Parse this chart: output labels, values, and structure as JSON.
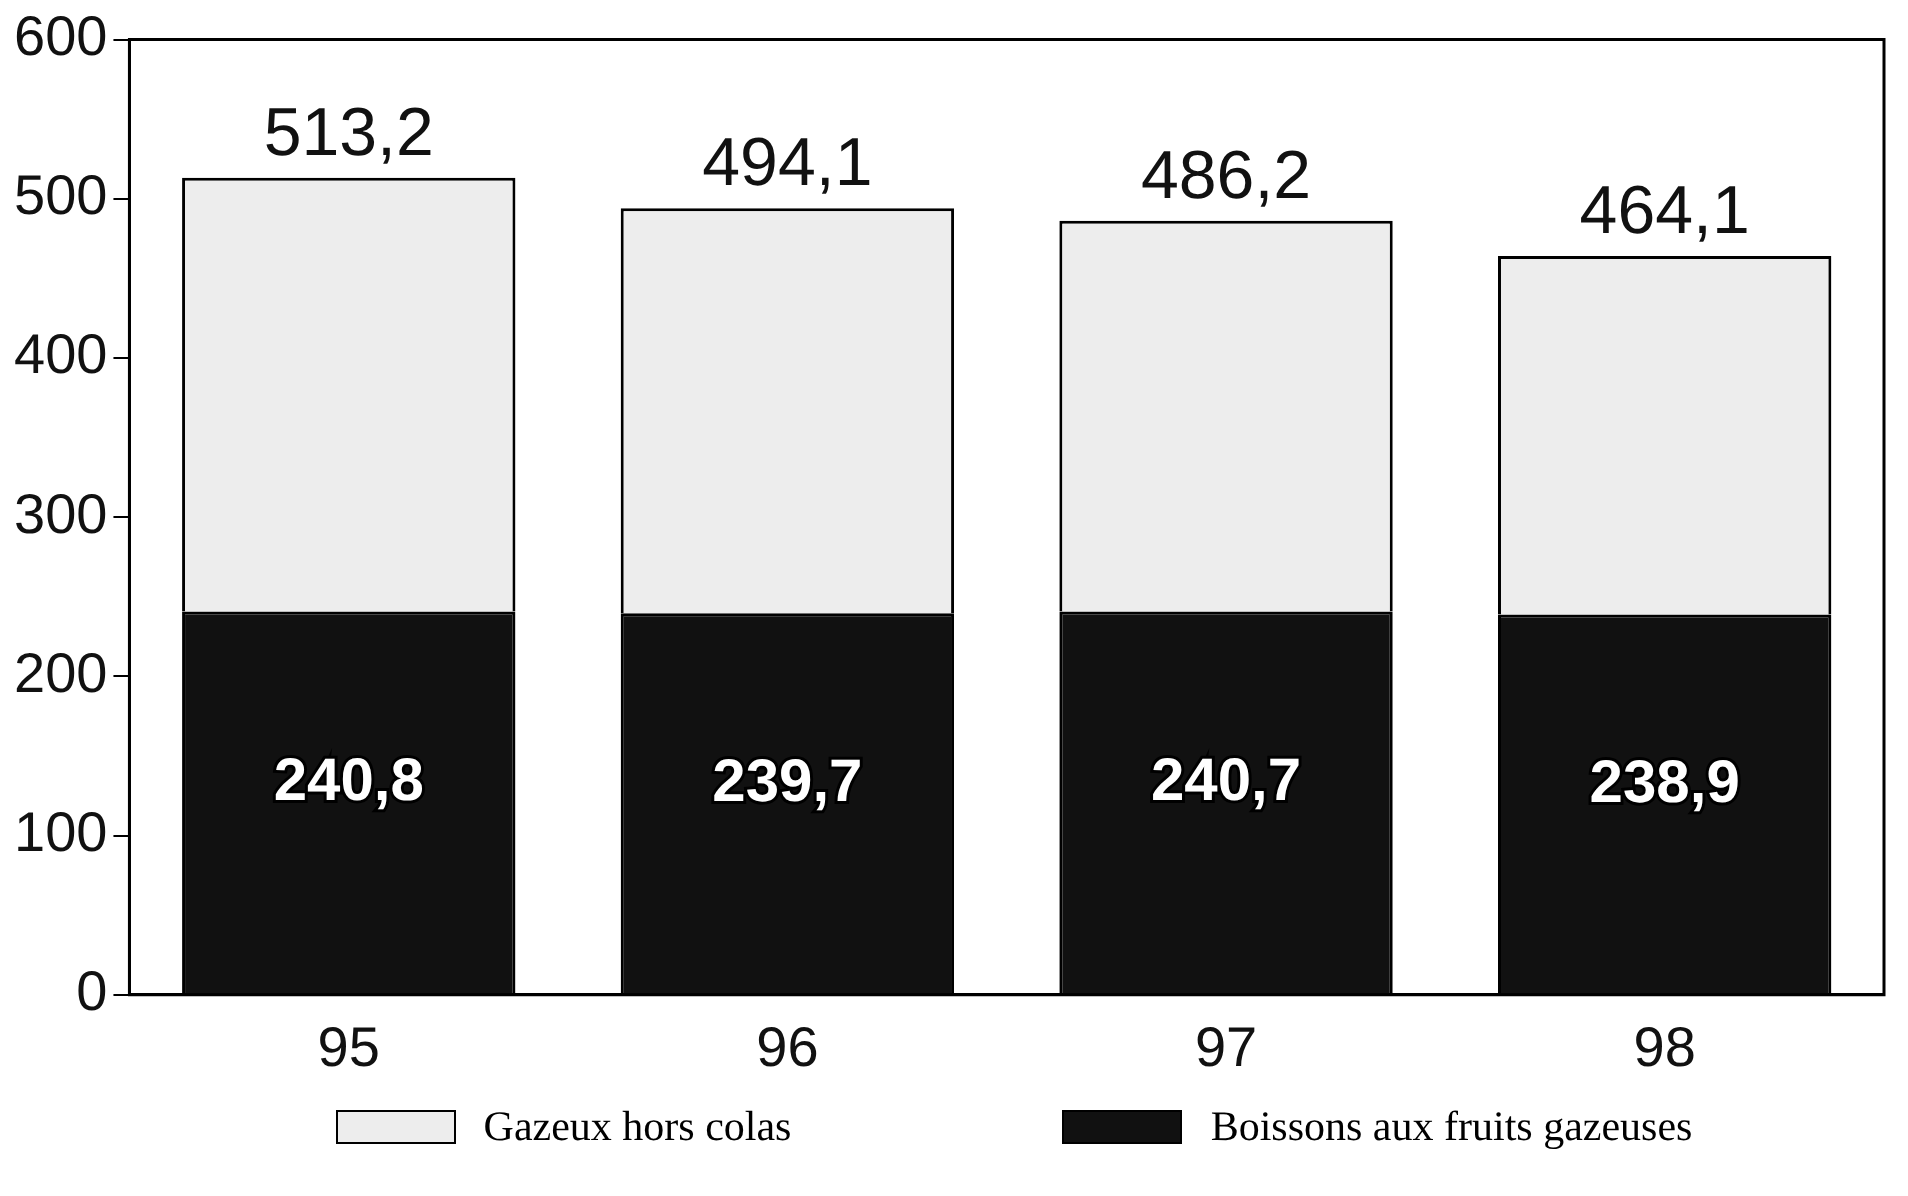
{
  "chart_data": {
    "type": "bar",
    "stacked": true,
    "categories": [
      "95",
      "96",
      "97",
      "98"
    ],
    "series": [
      {
        "name": "Boissons aux fruits gazeuses",
        "color": "#111111",
        "values": [
          240.8,
          239.7,
          240.7,
          238.9
        ],
        "value_labels": [
          "240,8",
          "239,7",
          "240,7",
          "238,9"
        ]
      },
      {
        "name": "Gazeux hors colas",
        "color": "#ededed",
        "values": [
          272.4,
          254.4,
          245.5,
          225.2
        ]
      }
    ],
    "totals": [
      "513,2",
      "494,1",
      "486,2",
      "464,1"
    ],
    "ylim": [
      0,
      600
    ],
    "yticks": [
      0,
      100,
      200,
      300,
      400,
      500,
      600
    ],
    "legend": "bottom"
  }
}
